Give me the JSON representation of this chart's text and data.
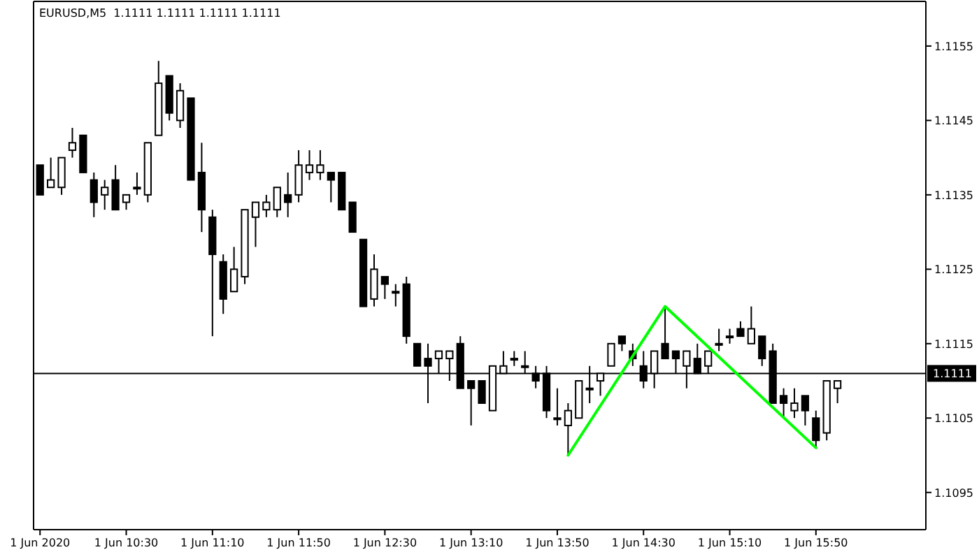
{
  "chart_data": {
    "type": "candlestick",
    "title": "EURUSD,M5  1.1111 1.1111 1.1111 1.1111",
    "color": "#000000",
    "x": [
      "2020-06-01T09:50",
      "2020-06-01T09:55",
      "2020-06-01T10:00",
      "2020-06-01T10:05",
      "2020-06-01T10:10",
      "2020-06-01T10:15",
      "2020-06-01T10:20",
      "2020-06-01T10:25",
      "2020-06-01T10:30",
      "2020-06-01T10:35",
      "2020-06-01T10:40",
      "2020-06-01T10:45",
      "2020-06-01T10:50",
      "2020-06-01T10:55",
      "2020-06-01T11:00",
      "2020-06-01T11:05",
      "2020-06-01T11:10",
      "2020-06-01T11:15",
      "2020-06-01T11:20",
      "2020-06-01T11:25",
      "2020-06-01T11:30",
      "2020-06-01T11:35",
      "2020-06-01T11:40",
      "2020-06-01T11:45",
      "2020-06-01T11:50",
      "2020-06-01T11:55",
      "2020-06-01T12:00",
      "2020-06-01T12:05",
      "2020-06-01T12:10",
      "2020-06-01T12:15",
      "2020-06-01T12:20",
      "2020-06-01T12:25",
      "2020-06-01T12:30",
      "2020-06-01T12:35",
      "2020-06-01T12:40",
      "2020-06-01T12:45",
      "2020-06-01T12:50",
      "2020-06-01T12:55",
      "2020-06-01T13:00",
      "2020-06-01T13:05",
      "2020-06-01T13:10",
      "2020-06-01T13:15",
      "2020-06-01T13:20",
      "2020-06-01T13:25",
      "2020-06-01T13:30",
      "2020-06-01T13:35",
      "2020-06-01T13:40",
      "2020-06-01T13:45",
      "2020-06-01T13:50",
      "2020-06-01T13:55",
      "2020-06-01T14:00",
      "2020-06-01T14:05",
      "2020-06-01T14:10",
      "2020-06-01T14:15",
      "2020-06-01T14:20",
      "2020-06-01T14:25",
      "2020-06-01T14:30",
      "2020-06-01T14:35",
      "2020-06-01T14:40",
      "2020-06-01T14:45",
      "2020-06-01T14:50",
      "2020-06-01T14:55",
      "2020-06-01T15:00",
      "2020-06-01T15:05",
      "2020-06-01T15:10",
      "2020-06-01T15:15",
      "2020-06-01T15:20",
      "2020-06-01T15:25",
      "2020-06-01T15:30",
      "2020-06-01T15:35",
      "2020-06-01T15:40",
      "2020-06-01T15:45",
      "2020-06-01T15:50",
      "2020-06-01T15:55",
      "2020-06-01T16:00"
    ],
    "ohlc": [
      [
        1.1139,
        1.1139,
        1.1135,
        1.1135
      ],
      [
        1.1136,
        1.114,
        1.1136,
        1.1137
      ],
      [
        1.1136,
        1.114,
        1.1135,
        1.114
      ],
      [
        1.1141,
        1.1144,
        1.114,
        1.1142
      ],
      [
        1.1143,
        1.1143,
        1.1138,
        1.1138
      ],
      [
        1.1137,
        1.1138,
        1.1132,
        1.1134
      ],
      [
        1.1135,
        1.1137,
        1.1133,
        1.1136
      ],
      [
        1.1137,
        1.1139,
        1.1133,
        1.1133
      ],
      [
        1.1134,
        1.1135,
        1.1133,
        1.1135
      ],
      [
        1.1136,
        1.1138,
        1.1135,
        1.1136
      ],
      [
        1.1135,
        1.1142,
        1.1134,
        1.1142
      ],
      [
        1.1143,
        1.1153,
        1.1143,
        1.115
      ],
      [
        1.1151,
        1.1151,
        1.1145,
        1.1146
      ],
      [
        1.1145,
        1.115,
        1.1144,
        1.1149
      ],
      [
        1.1148,
        1.1148,
        1.1137,
        1.1137
      ],
      [
        1.1138,
        1.1142,
        1.113,
        1.1133
      ],
      [
        1.1132,
        1.1133,
        1.1116,
        1.1127
      ],
      [
        1.1126,
        1.1127,
        1.1119,
        1.1121
      ],
      [
        1.1122,
        1.1128,
        1.1122,
        1.1125
      ],
      [
        1.1124,
        1.1133,
        1.1123,
        1.1133
      ],
      [
        1.1132,
        1.1134,
        1.1128,
        1.1134
      ],
      [
        1.1133,
        1.1135,
        1.1132,
        1.1134
      ],
      [
        1.1133,
        1.1136,
        1.1132,
        1.1136
      ],
      [
        1.1135,
        1.1138,
        1.1132,
        1.1134
      ],
      [
        1.1135,
        1.1141,
        1.1134,
        1.1139
      ],
      [
        1.1138,
        1.1141,
        1.1137,
        1.1139
      ],
      [
        1.1138,
        1.1141,
        1.1137,
        1.1139
      ],
      [
        1.1138,
        1.1138,
        1.1134,
        1.1137
      ],
      [
        1.1138,
        1.1138,
        1.1133,
        1.1133
      ],
      [
        1.1134,
        1.1134,
        1.113,
        1.113
      ],
      [
        1.1129,
        1.1129,
        1.112,
        1.112
      ],
      [
        1.1121,
        1.1127,
        1.112,
        1.1125
      ],
      [
        1.1124,
        1.1124,
        1.1121,
        1.1123
      ],
      [
        1.1122,
        1.1123,
        1.112,
        1.1122
      ],
      [
        1.1123,
        1.1124,
        1.1115,
        1.1116
      ],
      [
        1.1115,
        1.1115,
        1.1112,
        1.1112
      ],
      [
        1.1113,
        1.1115,
        1.1107,
        1.1112
      ],
      [
        1.1113,
        1.1114,
        1.1111,
        1.1114
      ],
      [
        1.1113,
        1.1114,
        1.111,
        1.1114
      ],
      [
        1.1115,
        1.1116,
        1.1109,
        1.1109
      ],
      [
        1.111,
        1.111,
        1.1104,
        1.1109
      ],
      [
        1.111,
        1.111,
        1.1107,
        1.1107
      ],
      [
        1.1106,
        1.1112,
        1.1106,
        1.1112
      ],
      [
        1.1111,
        1.1114,
        1.1111,
        1.1112
      ],
      [
        1.1113,
        1.1114,
        1.1112,
        1.1113
      ],
      [
        1.1112,
        1.1114,
        1.1111,
        1.1112
      ],
      [
        1.1111,
        1.1112,
        1.1109,
        1.111
      ],
      [
        1.1111,
        1.1112,
        1.1105,
        1.1106
      ],
      [
        1.1105,
        1.1109,
        1.1104,
        1.1105
      ],
      [
        1.1104,
        1.1107,
        1.11,
        1.1106
      ],
      [
        1.1105,
        1.111,
        1.1105,
        1.111
      ],
      [
        1.1109,
        1.1112,
        1.1107,
        1.1109
      ],
      [
        1.111,
        1.1111,
        1.1108,
        1.1111
      ],
      [
        1.1112,
        1.1115,
        1.1112,
        1.1115
      ],
      [
        1.1116,
        1.1116,
        1.1114,
        1.1115
      ],
      [
        1.1114,
        1.1115,
        1.1112,
        1.1113
      ],
      [
        1.1112,
        1.1114,
        1.1109,
        1.111
      ],
      [
        1.1111,
        1.1114,
        1.1109,
        1.1114
      ],
      [
        1.1115,
        1.112,
        1.1113,
        1.1113
      ],
      [
        1.1114,
        1.1114,
        1.1111,
        1.1113
      ],
      [
        1.1112,
        1.1114,
        1.1109,
        1.1114
      ],
      [
        1.1113,
        1.1115,
        1.1111,
        1.1111
      ],
      [
        1.1112,
        1.1114,
        1.1111,
        1.1114
      ],
      [
        1.1115,
        1.1117,
        1.1114,
        1.1115
      ],
      [
        1.1116,
        1.1117,
        1.1115,
        1.1116
      ],
      [
        1.1117,
        1.1118,
        1.1116,
        1.1116
      ],
      [
        1.1115,
        1.112,
        1.1115,
        1.1117
      ],
      [
        1.1116,
        1.1116,
        1.1112,
        1.1113
      ],
      [
        1.1114,
        1.1115,
        1.1107,
        1.1107
      ],
      [
        1.1108,
        1.1109,
        1.1105,
        1.1107
      ],
      [
        1.1106,
        1.1109,
        1.1105,
        1.1107
      ],
      [
        1.1108,
        1.1108,
        1.1104,
        1.1106
      ],
      [
        1.1105,
        1.1106,
        1.1101,
        1.1102
      ],
      [
        1.1103,
        1.111,
        1.1102,
        1.111
      ],
      [
        1.1109,
        1.111,
        1.1107,
        1.111
      ]
    ],
    "series": [
      {
        "type": "line",
        "color": "#00ff00",
        "x": [
          "2020-06-01T13:55",
          "2020-06-01T14:40",
          "2020-06-01T15:50"
        ],
        "values": [
          1.11,
          1.112,
          1.1101
        ]
      }
    ],
    "xlim": [
      "2020-06-01T09:47",
      "2020-06-01T16:41"
    ],
    "xticks": [
      {
        "value": "2020-06-01T09:50",
        "label": "1 Jun 2020"
      },
      {
        "value": "2020-06-01T10:30",
        "label": "1 Jun 10:30"
      },
      {
        "value": "2020-06-01T11:10",
        "label": "1 Jun 11:10"
      },
      {
        "value": "2020-06-01T11:50",
        "label": "1 Jun 11:50"
      },
      {
        "value": "2020-06-01T12:30",
        "label": "1 Jun 12:30"
      },
      {
        "value": "2020-06-01T13:10",
        "label": "1 Jun 13:10"
      },
      {
        "value": "2020-06-01T13:50",
        "label": "1 Jun 13:50"
      },
      {
        "value": "2020-06-01T14:30",
        "label": "1 Jun 14:30"
      },
      {
        "value": "2020-06-01T15:10",
        "label": "1 Jun 15:10"
      },
      {
        "value": "2020-06-01T15:50",
        "label": "1 Jun 15:50"
      }
    ],
    "ylim": [
      1.109,
      1.1161
    ],
    "yticks": [
      {
        "value": 1.1095,
        "label": "1.1095"
      },
      {
        "value": 1.1105,
        "label": "1.1105"
      },
      {
        "value": 1.1115,
        "label": "1.1115"
      },
      {
        "value": 1.1125,
        "label": "1.1125"
      },
      {
        "value": 1.1135,
        "label": "1.1135"
      },
      {
        "value": 1.1145,
        "label": "1.1145"
      },
      {
        "value": 1.1155,
        "label": "1.1155"
      }
    ],
    "ref_lines": [
      {
        "axis": "y",
        "value": 1.1111,
        "label": "1.1111",
        "color": "#000000"
      }
    ]
  }
}
